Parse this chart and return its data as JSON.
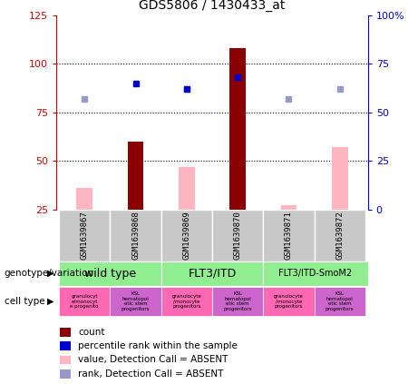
{
  "title": "GDS5806 / 1430433_at",
  "samples": [
    "GSM1639867",
    "GSM1639868",
    "GSM1639869",
    "GSM1639870",
    "GSM1639871",
    "GSM1639872"
  ],
  "x_positions": [
    0,
    1,
    2,
    3,
    4,
    5
  ],
  "count_values": [
    null,
    60,
    null,
    108,
    null,
    null
  ],
  "rank_values": [
    null,
    65,
    62,
    68,
    null,
    null
  ],
  "absent_value_values": [
    36,
    null,
    47,
    null,
    27,
    57
  ],
  "absent_rank_values": [
    57,
    null,
    62,
    null,
    57,
    62
  ],
  "left_ylim": [
    25,
    125
  ],
  "right_ylim": [
    0,
    100
  ],
  "left_yticks": [
    25,
    50,
    75,
    100,
    125
  ],
  "right_yticks": [
    0,
    25,
    50,
    75,
    100
  ],
  "right_yticklabels": [
    "0",
    "25",
    "50",
    "75",
    "100%"
  ],
  "left_yticklabels": [
    "25",
    "50",
    "75",
    "100",
    "125"
  ],
  "hline_values": [
    50,
    75,
    100
  ],
  "bar_width": 0.45,
  "count_color": "#8B0000",
  "rank_color": "#0000CD",
  "absent_value_color": "#FFB6C1",
  "absent_rank_color": "#9999CC",
  "left_axis_color": "#CC0000",
  "right_axis_color": "#0000CC",
  "bg_gray": "#C8C8C8",
  "geno_green": "#90EE90",
  "cell_pink": "#FF69B4",
  "cell_purple": "#CC66CC",
  "legend_items": [
    {
      "label": "count",
      "color": "#8B0000"
    },
    {
      "label": "percentile rank within the sample",
      "color": "#0000CD"
    },
    {
      "label": "value, Detection Call = ABSENT",
      "color": "#FFB6C1"
    },
    {
      "label": "rank, Detection Call = ABSENT",
      "color": "#9999CC"
    }
  ]
}
